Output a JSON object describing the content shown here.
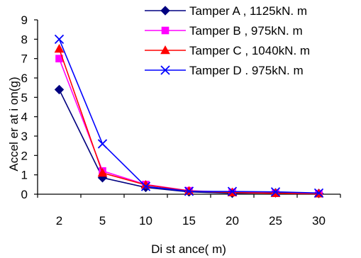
{
  "chart_data": {
    "type": "line",
    "categories": [
      "2",
      "5",
      "10",
      "15",
      "20",
      "25",
      "30"
    ],
    "xlabel": "Di st ance( m)",
    "ylabel": "Accel er at i on(g)",
    "ylim": [
      0,
      9
    ],
    "yticks": [
      "0",
      "1",
      "2",
      "3",
      "4",
      "5",
      "6",
      "7",
      "8",
      "9"
    ],
    "grid": false,
    "legend_position": "top-right",
    "series": [
      {
        "name": "Tamper   A , 1125kN. m",
        "color": "#000080",
        "marker": "diamond",
        "values": [
          5.4,
          0.85,
          0.35,
          0.12,
          0.05,
          0.07,
          0.04
        ]
      },
      {
        "name": "Tamper   B , 975kN. m",
        "color": "#FF00FF",
        "marker": "square",
        "values": [
          7.0,
          1.2,
          0.5,
          0.18,
          0.1,
          0.05,
          0.03
        ]
      },
      {
        "name": "Tamper   C , 1040kN. m",
        "color": "#FF0000",
        "marker": "triangle",
        "values": [
          7.5,
          1.1,
          0.48,
          0.17,
          0.09,
          0.05,
          0.03
        ]
      },
      {
        "name": "Tamper   D . 975kN. m",
        "color": "#0000FF",
        "marker": "x",
        "values": [
          8.0,
          2.6,
          0.4,
          0.15,
          0.14,
          0.12,
          0.06
        ]
      }
    ]
  }
}
